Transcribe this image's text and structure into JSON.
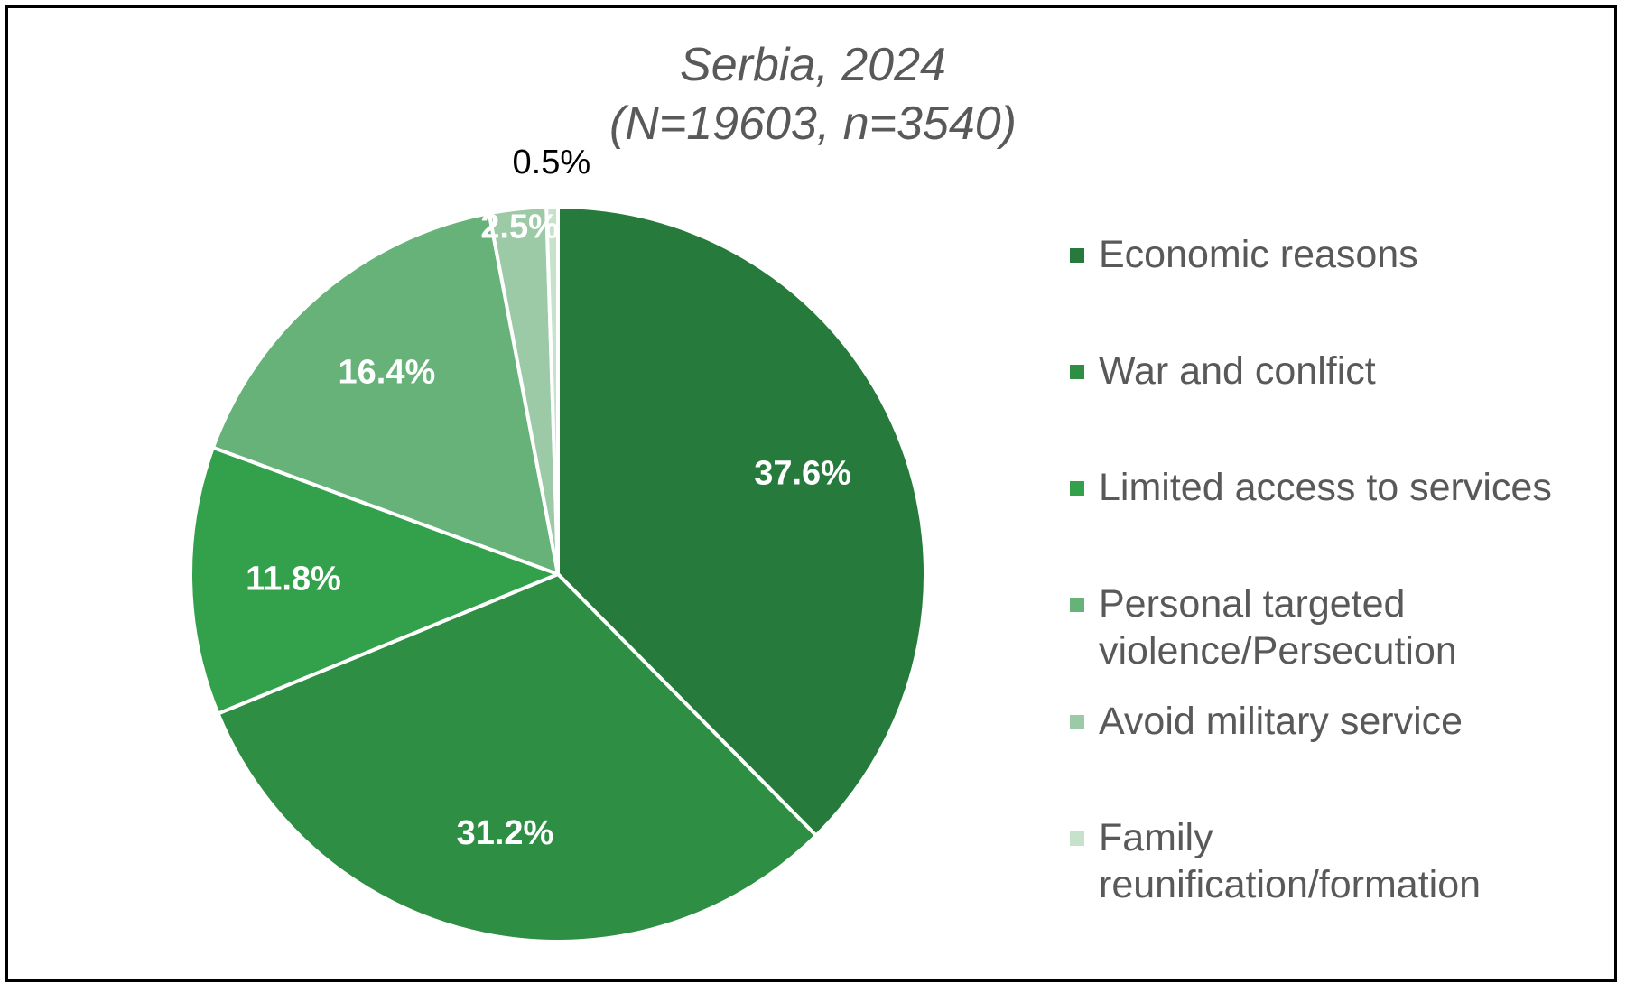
{
  "chart_data": {
    "type": "pie",
    "title": "Serbia, 2024",
    "subtitle": "(N=19603, n=3540)",
    "categories": [
      "Economic reasons",
      "War and conlfict",
      "Limited access to services",
      "Personal targeted violence/Persecution",
      "Avoid military service",
      "Family reunification/formation"
    ],
    "values": [
      37.6,
      31.2,
      11.8,
      16.4,
      2.5,
      0.5
    ],
    "data_labels": [
      "37.6%",
      "31.2%",
      "11.8%",
      "16.4%",
      "2.5%",
      "0.5%"
    ],
    "legend_labels": [
      "Economic reasons",
      "War and conlfict",
      "Limited access to services",
      "Personal targeted\nviolence/Persecution",
      "Avoid military service",
      "Family\nreunification/formation"
    ],
    "colors": [
      "#267b3c",
      "#2d8e44",
      "#33a04c",
      "#66b278",
      "#9ccaa6",
      "#c6e2cb"
    ],
    "legend_position": "right",
    "start_angle": "12 o'clock",
    "direction": "clockwise"
  }
}
